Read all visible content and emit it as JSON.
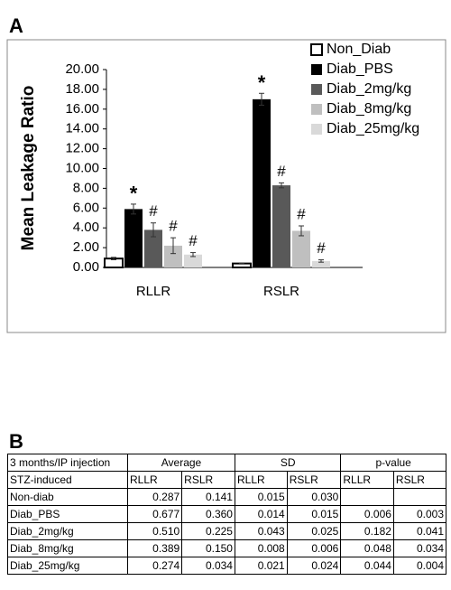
{
  "panel_a_label": "A",
  "panel_b_label": "B",
  "chart_data": {
    "type": "bar",
    "ylabel": "Mean Leakage Ratio",
    "categories": [
      "RLLR",
      "RSLR"
    ],
    "ylim": [
      0,
      20
    ],
    "yticks": [
      {
        "value": 0,
        "label": "0.00"
      },
      {
        "value": 2,
        "label": "2.00"
      },
      {
        "value": 4,
        "label": "4.00"
      },
      {
        "value": 6,
        "label": "6.00"
      },
      {
        "value": 8,
        "label": "8.00"
      },
      {
        "value": 10,
        "label": "10.00"
      },
      {
        "value": 12,
        "label": "12.00"
      },
      {
        "value": 14,
        "label": "14.00"
      },
      {
        "value": 16,
        "label": "16.00"
      },
      {
        "value": 18,
        "label": "18.00"
      },
      {
        "value": 20,
        "label": "20.00"
      }
    ],
    "series": [
      {
        "name": "Non_Diab",
        "color": "#ffffff",
        "edge": "#000000",
        "values": [
          0.9,
          0.4
        ],
        "errors": [
          0.12,
          0.05
        ]
      },
      {
        "name": "Diab_PBS",
        "color": "#000000",
        "values": [
          5.9,
          17.0
        ],
        "errors": [
          0.5,
          0.6
        ],
        "annotations": [
          "*",
          "*"
        ]
      },
      {
        "name": "Diab_2mg/kg",
        "color": "#595959",
        "values": [
          3.8,
          8.3
        ],
        "errors": [
          0.7,
          0.25
        ],
        "annotations": [
          "#",
          "#"
        ]
      },
      {
        "name": "Diab_8mg/kg",
        "color": "#bfbfbf",
        "values": [
          2.2,
          3.7
        ],
        "errors": [
          0.8,
          0.5
        ],
        "annotations": [
          "#",
          "#"
        ]
      },
      {
        "name": "Diab_25mg/kg",
        "color": "#d9d9d9",
        "values": [
          1.3,
          0.65
        ],
        "errors": [
          0.2,
          0.12
        ],
        "annotations": [
          "#",
          "#"
        ]
      }
    ]
  },
  "table": {
    "header": [
      "3 months/IP injection",
      "Average",
      "SD",
      "p-value"
    ],
    "subheader": [
      "STZ-induced",
      "RLLR",
      "RSLR",
      "RLLR",
      "RSLR",
      "RLLR",
      "RSLR"
    ],
    "rows": [
      [
        "Non-diab",
        "0.287",
        "0.141",
        "0.015",
        "0.030",
        null,
        null
      ],
      [
        "Diab_PBS",
        "0.677",
        "0.360",
        "0.014",
        "0.015",
        "0.006",
        "0.003"
      ],
      [
        "Diab_2mg/kg",
        "0.510",
        "0.225",
        "0.043",
        "0.025",
        "0.182",
        "0.041"
      ],
      [
        "Diab_8mg/kg",
        "0.389",
        "0.150",
        "0.008",
        "0.006",
        "0.048",
        "0.034"
      ],
      [
        "Diab_25mg/kg",
        "0.274",
        "0.034",
        "0.021",
        "0.024",
        "0.044",
        "0.004"
      ]
    ]
  }
}
